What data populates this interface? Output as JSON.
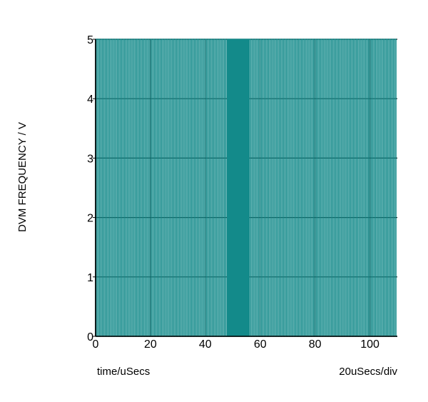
{
  "chart_data": {
    "type": "line",
    "title": "",
    "ylabel": "DVM FREQUENCY / V",
    "xlabel": "time/uSecs",
    "x_scale_note": "20uSecs/div",
    "xlim": [
      0,
      110
    ],
    "ylim": [
      0,
      5
    ],
    "x_ticks": [
      "0",
      "20",
      "40",
      "60",
      "80",
      "100"
    ],
    "y_ticks": [
      "0",
      "1",
      "2",
      "3",
      "4",
      "5"
    ],
    "grid": true,
    "legend": "none",
    "series": [
      {
        "waveform": "square",
        "low": 0,
        "high": 5,
        "period_segments": [
          {
            "from": 0,
            "to": 48,
            "period": 1
          },
          {
            "from": 48,
            "to": 56,
            "period": 0.5
          },
          {
            "from": 56,
            "to": 110,
            "period": 1
          }
        ]
      }
    ],
    "colors": {
      "trace": "#138a8a",
      "grid": "#000000",
      "background": "#ffffff"
    }
  }
}
